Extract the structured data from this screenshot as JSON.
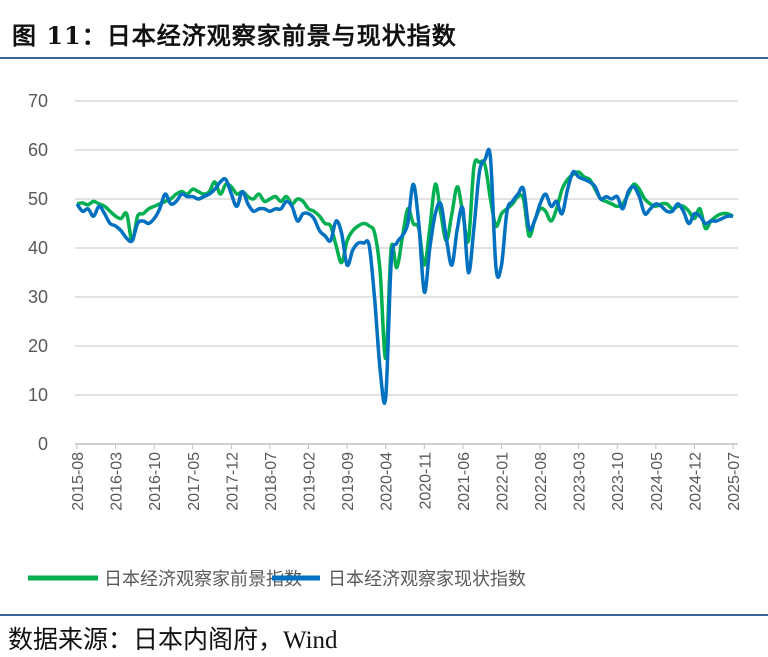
{
  "title": "图 11：日本经济观察家前景与现状指数",
  "source": "数据来源：日本内阁府，Wind",
  "colors": {
    "outlook": "#00B050",
    "current": "#0070C0",
    "rule": "#3a6496",
    "grid": "#d9d9d9"
  },
  "chart_data": {
    "type": "line",
    "x_start": "2015-08",
    "x_end": "2025-07",
    "x_frequency": "monthly",
    "x_tick_labels": [
      "2015-08",
      "2016-03",
      "2016-10",
      "2017-05",
      "2017-12",
      "2018-07",
      "2019-02",
      "2019-09",
      "2020-04",
      "2020-11",
      "2021-06",
      "2022-01",
      "2022-08",
      "2023-03",
      "2023-10",
      "2024-05",
      "2024-12",
      "2025-07"
    ],
    "ylim": [
      0,
      70
    ],
    "y_ticks": [
      "0",
      "10",
      "20",
      "30",
      "40",
      "50",
      "60",
      "70"
    ],
    "grid": "horizontal",
    "legend": "bottom",
    "series": [
      {
        "name": "日本经济观察家前景指数",
        "color": "#00B050",
        "values": [
          49.0,
          49.2,
          48.8,
          49.5,
          49.0,
          48.5,
          47.5,
          46.5,
          46.0,
          47.0,
          41.5,
          46.5,
          47.0,
          48.0,
          48.5,
          49.0,
          49.5,
          50.0,
          51.0,
          51.5,
          51.0,
          52.0,
          51.5,
          51.0,
          51.5,
          53.5,
          51.0,
          53.0,
          52.5,
          51.0,
          51.5,
          50.5,
          50.0,
          51.0,
          49.5,
          50.0,
          50.5,
          49.5,
          50.5,
          49.0,
          50.0,
          49.5,
          48.0,
          47.5,
          46.5,
          45.0,
          44.5,
          40.5,
          37.0,
          41.5,
          43.5,
          44.5,
          45.0,
          44.5,
          43.0,
          35.0,
          17.5,
          40.0,
          36.0,
          42.0,
          48.0,
          45.0,
          44.0,
          36.5,
          44.0,
          53.0,
          47.0,
          41.5,
          47.0,
          52.5,
          47.0,
          41.5,
          56.5,
          57.5,
          57.0,
          50.0,
          44.5,
          47.0,
          48.0,
          49.0,
          50.5,
          50.0,
          42.5,
          45.5,
          48.0,
          47.5,
          45.5,
          48.0,
          52.0,
          54.0,
          55.0,
          55.5,
          54.5,
          54.0,
          52.0,
          50.0,
          49.5,
          49.0,
          48.5,
          49.0,
          51.0,
          53.0,
          52.0,
          50.0,
          49.0,
          48.5,
          49.0,
          49.0,
          48.0,
          48.5,
          48.5,
          47.5,
          46.0,
          48.0,
          44.0,
          45.5,
          46.5,
          47.0,
          47.0,
          46.5
        ]
      },
      {
        "name": "日本经济观察家现状指数",
        "color": "#0070C0",
        "values": [
          49.0,
          47.5,
          48.0,
          46.5,
          48.5,
          47.0,
          45.0,
          44.5,
          43.5,
          42.0,
          41.5,
          45.0,
          45.5,
          45.0,
          46.0,
          48.0,
          51.0,
          49.0,
          49.5,
          51.0,
          50.5,
          50.5,
          50.0,
          50.5,
          51.0,
          52.0,
          53.5,
          54.0,
          51.0,
          48.5,
          51.5,
          49.0,
          47.5,
          48.0,
          48.0,
          47.5,
          48.0,
          48.0,
          49.5,
          48.5,
          45.5,
          47.0,
          47.0,
          46.0,
          43.5,
          42.5,
          41.5,
          45.5,
          43.0,
          36.5,
          39.5,
          41.0,
          41.0,
          40.5,
          29.5,
          15.0,
          9.5,
          37.0,
          41.0,
          42.5,
          45.0,
          53.0,
          45.0,
          31.0,
          40.0,
          47.0,
          49.0,
          42.0,
          36.5,
          44.0,
          48.0,
          35.0,
          44.0,
          55.5,
          58.0,
          58.5,
          36.0,
          36.5,
          47.5,
          49.5,
          51.0,
          52.0,
          44.0,
          45.5,
          49.0,
          51.0,
          48.5,
          49.5,
          47.0,
          52.0,
          55.5,
          54.5,
          54.0,
          53.5,
          52.5,
          50.0,
          50.5,
          50.0,
          50.5,
          48.0,
          51.5,
          52.5,
          50.5,
          47.0,
          48.0,
          49.0,
          48.5,
          47.5,
          47.5,
          49.0,
          47.5,
          45.0,
          47.0,
          46.5,
          45.0,
          45.5,
          45.5,
          46.0,
          46.5,
          46.5
        ]
      }
    ]
  }
}
